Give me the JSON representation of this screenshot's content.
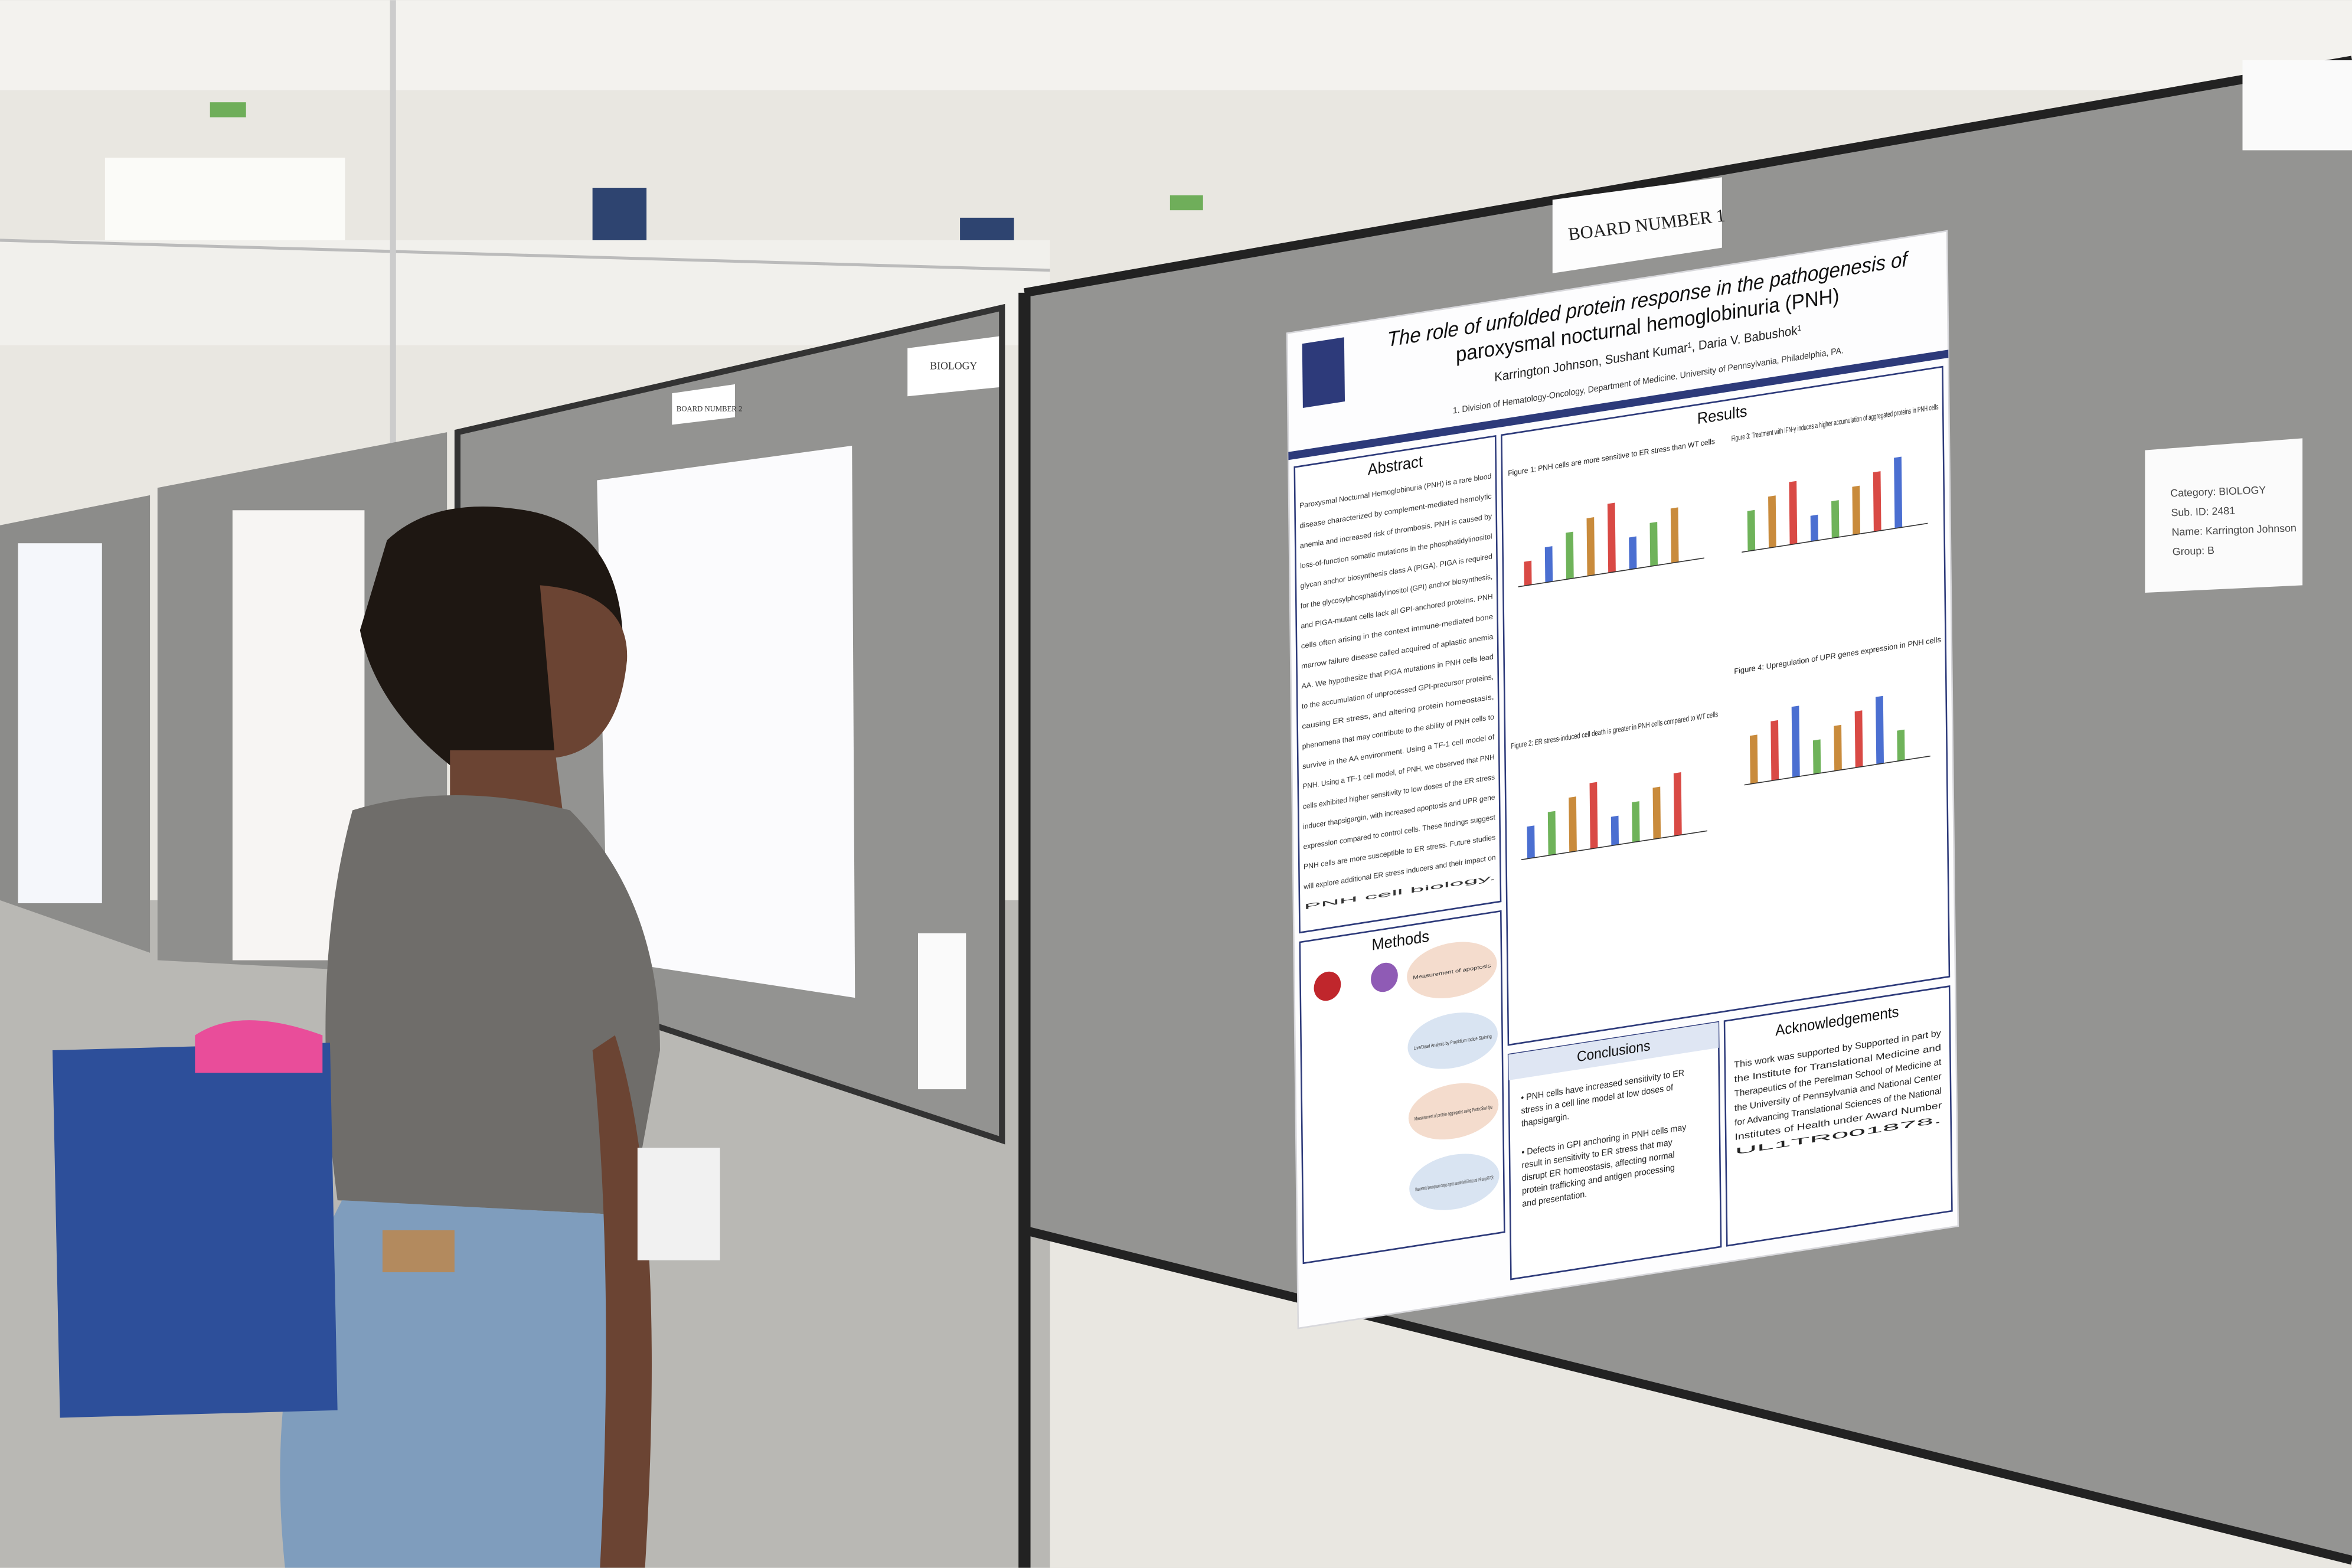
{
  "boards": {
    "board_1": "BOARD NUMBER 1",
    "board_2": "BOARD NUMBER 2",
    "category_sign": "BIOLOGY"
  },
  "poster": {
    "title_line_1": "The role of unfolded protein response in the pathogenesis of",
    "title_line_2": "paroxysmal nocturnal hemoglobinuria (PNH)",
    "authors": "Karrington Johnson, Sushant Kumar¹, Daria V. Babushok¹",
    "affiliation": "1. Division of Hematology-Oncology, Department of Medicine, University of Pennsylvania, Philadelphia, PA.",
    "headings": {
      "abstract": "Abstract",
      "results": "Results",
      "methods": "Methods",
      "conclusions": "Conclusions",
      "acknowledgements": "Acknowledgements"
    },
    "abstract_lines": [
      "Paroxysmal Nocturnal Hemoglobinuria (PNH) is a rare blood",
      "disease characterized by complement-mediated hemolytic",
      "anemia and increased risk of thrombosis. PNH is caused by",
      "loss-of-function somatic mutations in the phosphatidylinositol",
      "glycan anchor biosynthesis class A (PIGA). PIGA is required",
      "for the glycosylphosphatidylinositol (GPI) anchor biosynthesis,",
      "and PIGA-mutant cells lack all GPI-anchored proteins. PNH",
      "cells often arising in the context immune-mediated bone",
      "marrow failure disease called acquired of aplastic anemia",
      "AA. We hypothesize that PIGA mutations in PNH cells lead",
      "to the accumulation of unprocessed GPI-precursor proteins,",
      "causing ER stress, and altering protein homeostasis,",
      "phenomena that may contribute to the ability of PNH cells to",
      "survive in the AA environment. Using a TF-1 cell model of",
      "PNH. Using a TF-1 cell model, of PNH, we observed that PNH",
      "cells exhibited higher sensitivity to low doses of the ER stress",
      "inducer thapsigargin, with increased apoptosis and UPR gene",
      "expression compared to control cells. These findings suggest",
      "PNH cells are more susceptible to ER stress. Future studies",
      "will explore additional ER stress inducers and their impact on",
      "PNH cell biology."
    ],
    "figure_captions": [
      "Figure 1: PNH cells are more sensitive to ER stress than WT cells",
      "Figure 2: ER stress-induced cell death is greater in PNH cells compared to WT cells",
      "Figure 3: Treatment with IFN-γ induces a higher accumulation of aggregated proteins in PNH cells",
      "Figure 4: Upregulation of UPR genes expression in PNH cells"
    ],
    "methods_steps": [
      "Measurement of apoptosis",
      "Live/Dead Analysis by Propidium Iodide Staining",
      "Measurement of protein aggregates using ProteoStat dye",
      "Measurement of gene expression changes in genes associated with ER stress and UPR using qRT-PCR"
    ],
    "conclusions": [
      "PNH cells have increased sensitivity to ER stress in a cell line model at low doses of thapsigargin.",
      "Defects in GPI anchoring in PNH cells may result in sensitivity to ER stress that may disrupt ER homeostasis, affecting normal protein trafficking and antigen processing and presentation."
    ],
    "acknowledgements_lines": [
      "This work was supported by Supported in part by",
      "the Institute for Translational Medicine and",
      "Therapeutics of the Perelman School of Medicine at",
      "the University of Pennsylvania and National Center",
      "for Advancing Translational Sciences of the National",
      "Institutes of Health under Award Number",
      "UL1TR001878."
    ]
  },
  "card": {
    "lines": [
      "Category: BIOLOGY",
      "Sub. ID: 2481",
      "Name: Karrington Johnson",
      "Group: B"
    ]
  }
}
